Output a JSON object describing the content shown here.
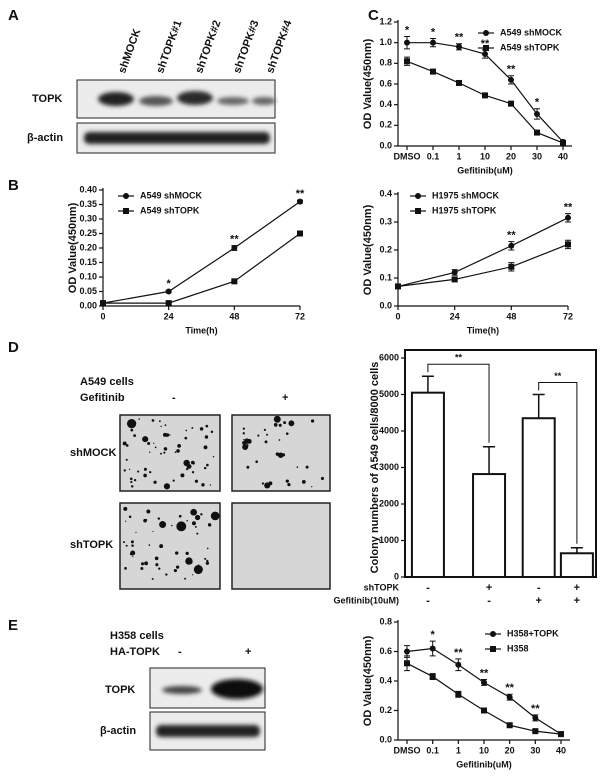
{
  "panel_labels": [
    "A",
    "B",
    "C",
    "D",
    "E"
  ],
  "panel_a": {
    "lanes": [
      "shMOCK",
      "shTOPK#1",
      "shTOPK#2",
      "shTOPK#3",
      "shTOPK#4"
    ],
    "rows": [
      "TOPK",
      "β-actin"
    ]
  },
  "panel_d": {
    "cell_line": "A549 cells",
    "treatment": "Gefitinib",
    "columns": [
      "-",
      "+"
    ],
    "rows": [
      "shMOCK",
      "shTOPK"
    ]
  },
  "panel_e": {
    "cell_line": "H358 cells",
    "treatment": "HA-TOPK",
    "columns": [
      "-",
      "+"
    ],
    "rows": [
      "TOPK",
      "β-actin"
    ]
  },
  "chart_data": [
    {
      "type": "line",
      "xlabel": "Gefitinib(uM)",
      "ylabel": "OD Value(450nm)",
      "categories": [
        "DMSO",
        "0.1",
        "1",
        "10",
        "20",
        "30",
        "40"
      ],
      "ylim": [
        0,
        1.2
      ],
      "yticks": [
        {
          "value": 0,
          "label": "0.0"
        },
        0.2,
        0.4,
        0.6,
        0.8,
        {
          "value": 1,
          "label": "1.0"
        },
        1.2
      ],
      "annotations": [
        "*",
        "*",
        "**",
        "**",
        "**",
        "*",
        null
      ],
      "series": [
        {
          "name": "A549 shMOCK",
          "color": "#111111",
          "marker": "circle",
          "values": [
            1.0,
            1.0,
            0.96,
            0.89,
            0.64,
            0.31,
            0.04
          ],
          "errors": [
            0.06,
            0.04,
            0.03,
            0.04,
            0.04,
            0.05,
            0.01
          ]
        },
        {
          "name": "A549 shTOPK",
          "color": "#111111",
          "marker": "square",
          "values": [
            0.82,
            0.72,
            0.61,
            0.49,
            0.41,
            0.13,
            0.03
          ],
          "errors": [
            0.04,
            0.02,
            0.01,
            0.01,
            0.01,
            0.02,
            0.01
          ]
        }
      ]
    },
    {
      "type": "line",
      "xlabel": "Time(h)",
      "ylabel": "OD Value(450nm)",
      "x": [
        0,
        24,
        48,
        72
      ],
      "xlim": [
        0,
        72
      ],
      "xticks": [
        0,
        24,
        48,
        72
      ],
      "ylim": [
        0,
        0.4
      ],
      "yticks": [
        {
          "value": 0,
          "label": "0.00"
        },
        0.05,
        {
          "value": 0.1,
          "label": "0.10"
        },
        0.15,
        {
          "value": 0.2,
          "label": "0.20"
        },
        0.25,
        {
          "value": 0.3,
          "label": "0.30"
        },
        0.35,
        {
          "value": 0.4,
          "label": "0.40"
        }
      ],
      "annotations": [
        null,
        "*",
        "**",
        "**"
      ],
      "series": [
        {
          "name": "A549 shMOCK",
          "color": "#111111",
          "marker": "circle",
          "values": [
            0.01,
            0.05,
            0.2,
            0.36
          ],
          "errors": [
            0.003,
            0.004,
            0.008,
            0.005
          ]
        },
        {
          "name": "A549 shTOPK",
          "color": "#111111",
          "marker": "square",
          "values": [
            0.01,
            0.01,
            0.085,
            0.25
          ],
          "errors": [
            0.003,
            0.003,
            0.004,
            0.004
          ]
        }
      ]
    },
    {
      "type": "line",
      "xlabel": "Time(h)",
      "ylabel": "OD Value(450nm)",
      "x": [
        0,
        24,
        48,
        72
      ],
      "xlim": [
        0,
        72
      ],
      "xticks": [
        0,
        24,
        48,
        72
      ],
      "ylim": [
        0,
        0.4
      ],
      "yticks": [
        {
          "value": 0,
          "label": "0.0"
        },
        0.1,
        0.2,
        0.3,
        0.4
      ],
      "annotations": [
        null,
        null,
        "**",
        "**"
      ],
      "series": [
        {
          "name": "H1975 shMOCK",
          "color": "#111111",
          "marker": "circle",
          "values": [
            0.07,
            0.12,
            0.215,
            0.315
          ],
          "errors": [
            0.005,
            0.01,
            0.015,
            0.015
          ]
        },
        {
          "name": "H1975 shTOPK",
          "color": "#111111",
          "marker": "square",
          "values": [
            0.07,
            0.095,
            0.14,
            0.22
          ],
          "errors": [
            0.005,
            0.008,
            0.015,
            0.015
          ]
        }
      ]
    },
    {
      "type": "bar",
      "ylabel": "Colony numbers of A549 cells/8000 cells",
      "values": [
        5050,
        2820,
        4350,
        650
      ],
      "errors": [
        450,
        750,
        650,
        150
      ],
      "color": "#ffffff",
      "ylim": [
        0,
        6000
      ],
      "yticks": [
        0,
        1000,
        2000,
        3000,
        4000,
        5000,
        6000
      ],
      "comparisons": [
        {
          "pair": [
            0,
            1
          ],
          "text": "**"
        },
        {
          "pair": [
            2,
            3
          ],
          "text": "**"
        }
      ],
      "rows": [
        {
          "label": "shTOPK",
          "values": [
            "-",
            "+",
            "-",
            "+"
          ]
        },
        {
          "label": "Gefitinib(10uM)",
          "values": [
            "-",
            "-",
            "+",
            "+"
          ]
        }
      ]
    },
    {
      "type": "line",
      "xlabel": "Gefitinib(uM)",
      "ylabel": "OD Value(450nm)",
      "categories": [
        "DMSO",
        "0.1",
        "1",
        "10",
        "20",
        "30",
        "40"
      ],
      "ylim": [
        0,
        0.8
      ],
      "yticks": [
        {
          "value": 0,
          "label": "0.0"
        },
        0.2,
        0.4,
        0.6,
        0.8
      ],
      "annotations": [
        null,
        "*",
        "**",
        "**",
        "**",
        "**",
        null
      ],
      "series": [
        {
          "name": "H358+TOPK",
          "color": "#111111",
          "marker": "circle",
          "values": [
            0.6,
            0.62,
            0.51,
            0.39,
            0.29,
            0.15,
            0.04
          ],
          "errors": [
            0.04,
            0.05,
            0.04,
            0.02,
            0.02,
            0.02,
            0.01
          ]
        },
        {
          "name": "H358",
          "color": "#111111",
          "marker": "square",
          "values": [
            0.52,
            0.43,
            0.31,
            0.2,
            0.1,
            0.06,
            0.04
          ],
          "errors": [
            0.05,
            0.02,
            0.02,
            0.01,
            0.01,
            0.01,
            0.01
          ]
        }
      ]
    }
  ]
}
